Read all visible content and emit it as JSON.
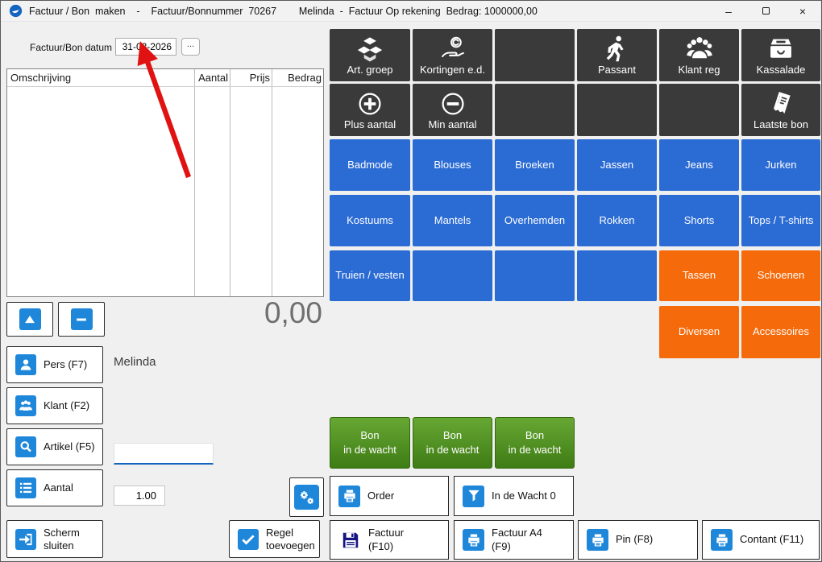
{
  "colors": {
    "accent-blue": "#2b6bd4",
    "accent-orange": "#f56a0a",
    "accent-dark": "#3a3a3a",
    "green-top": "#67a733",
    "green-bottom": "#3e7c15",
    "icon-blue": "#1e87da",
    "arrow-red": "#e01212"
  },
  "title_bar": {
    "title": "Factuur / Bon  maken    -    Factuur/Bonnummer  70267        Melinda  -  Factuur Op rekening  Bedrag: 1000000,00",
    "minimize_glyph": "–",
    "close_glyph": "×"
  },
  "invoice_panel": {
    "date_label": "Factuur/Bon datum",
    "date_value": "31-03-2026",
    "date_browse_label": "...",
    "table_columns": [
      "Omschrijving",
      "Aantal",
      "Prijs",
      "Bedrag"
    ],
    "table_rows": [],
    "total_display": "0,00",
    "operator_name": "Melinda",
    "article_input_value": "",
    "quantity_value": "1.00",
    "buttons": {
      "person": "Pers (F7)",
      "customer": "Klant (F2)",
      "article": "Artikel (F5)",
      "quantity": "Aantal",
      "close_screen": "Scherm\nsluiten",
      "add_line": "Regel\ntoevoegen"
    }
  },
  "action_grid": {
    "rows": [
      [
        {
          "name": "article-group-button",
          "label": "Art. groep",
          "style": "dark",
          "icon": "cubes"
        },
        {
          "name": "discounts-button",
          "label": "Kortingen e.d.",
          "style": "dark",
          "icon": "hand-coin"
        },
        {
          "name": "empty-dark-slot",
          "label": "",
          "style": "dark",
          "icon": ""
        },
        {
          "name": "passerby-button",
          "label": "Passant",
          "style": "dark",
          "icon": "walking-person"
        },
        {
          "name": "customer-register-button",
          "label": "Klant reg",
          "style": "dark",
          "icon": "people-group"
        },
        {
          "name": "cash-drawer-button",
          "label": "Kassalade",
          "style": "dark",
          "icon": "drawer"
        }
      ],
      [
        {
          "name": "plus-quantity-button",
          "label": "Plus aantal",
          "style": "dark",
          "icon": "plus-circle"
        },
        {
          "name": "min-quantity-button",
          "label": "Min aantal",
          "style": "dark",
          "icon": "minus-circle"
        },
        {
          "name": "empty-dark-slot",
          "label": "",
          "style": "dark",
          "icon": ""
        },
        {
          "name": "empty-dark-slot",
          "label": "",
          "style": "dark",
          "icon": ""
        },
        {
          "name": "empty-dark-slot",
          "label": "",
          "style": "dark",
          "icon": ""
        },
        {
          "name": "last-receipt-button",
          "label": "Laatste bon",
          "style": "dark",
          "icon": "receipt"
        }
      ],
      [
        {
          "name": "category-badmode",
          "label": "Badmode",
          "style": "blue",
          "icon": ""
        },
        {
          "name": "category-blouses",
          "label": "Blouses",
          "style": "blue",
          "icon": ""
        },
        {
          "name": "category-broeken",
          "label": "Broeken",
          "style": "blue",
          "icon": ""
        },
        {
          "name": "category-jassen",
          "label": "Jassen",
          "style": "blue",
          "icon": ""
        },
        {
          "name": "category-jeans",
          "label": "Jeans",
          "style": "blue",
          "icon": ""
        },
        {
          "name": "category-jurken",
          "label": "Jurken",
          "style": "blue",
          "icon": ""
        }
      ],
      [
        {
          "name": "category-kostuums",
          "label": "Kostuums",
          "style": "blue",
          "icon": ""
        },
        {
          "name": "category-mantels",
          "label": "Mantels",
          "style": "blue",
          "icon": ""
        },
        {
          "name": "category-overhemden",
          "label": "Overhemden",
          "style": "blue",
          "icon": ""
        },
        {
          "name": "category-rokken",
          "label": "Rokken",
          "style": "blue",
          "icon": ""
        },
        {
          "name": "category-shorts",
          "label": "Shorts",
          "style": "blue",
          "icon": ""
        },
        {
          "name": "category-tops-tshirts",
          "label": "Tops / T-shirts",
          "style": "blue",
          "icon": ""
        }
      ],
      [
        {
          "name": "category-truien-vesten",
          "label": "Truien / vesten",
          "style": "blue",
          "icon": ""
        },
        {
          "name": "empty-blue-slot",
          "label": "",
          "style": "blue",
          "icon": ""
        },
        {
          "name": "empty-blue-slot",
          "label": "",
          "style": "blue",
          "icon": ""
        },
        {
          "name": "empty-blue-slot",
          "label": "",
          "style": "blue",
          "icon": ""
        },
        {
          "name": "category-tassen",
          "label": "Tassen",
          "style": "orange",
          "icon": ""
        },
        {
          "name": "category-schoenen",
          "label": "Schoenen",
          "style": "orange",
          "icon": ""
        }
      ],
      [
        {
          "style": "none"
        },
        {
          "style": "none"
        },
        {
          "style": "none"
        },
        {
          "style": "none"
        },
        {
          "name": "category-diversen",
          "label": "Diversen",
          "style": "orange",
          "icon": ""
        },
        {
          "name": "category-accessoires",
          "label": "Accessoires",
          "style": "orange",
          "icon": ""
        }
      ]
    ]
  },
  "hold_buttons": [
    {
      "name": "hold-receipt-1",
      "label": "Bon\nin de wacht"
    },
    {
      "name": "hold-receipt-2",
      "label": "Bon\nin de wacht"
    },
    {
      "name": "hold-receipt-3",
      "label": "Bon\nin de wacht"
    }
  ],
  "bottom_buttons": {
    "order": "Order",
    "in_wait": "In de Wacht 0",
    "invoice": "Factuur\n(F10)",
    "invoice_a4": "Factuur A4\n(F9)",
    "pin": "Pin (F8)",
    "cash": "Contant (F11)"
  }
}
